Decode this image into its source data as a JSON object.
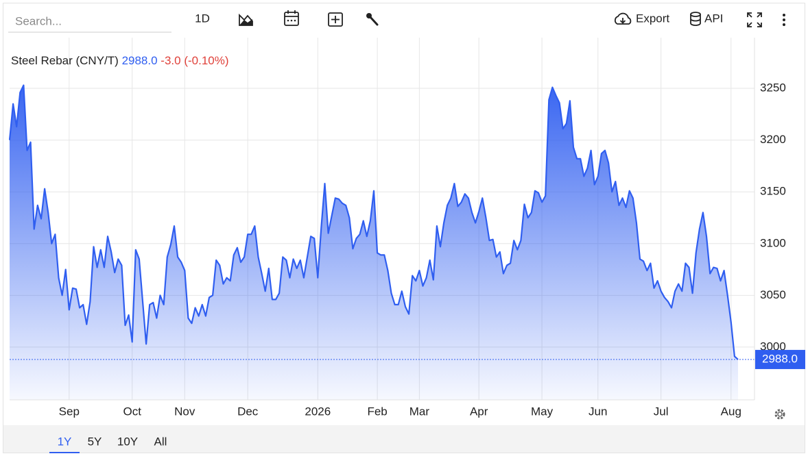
{
  "toolbar": {
    "search_placeholder": "Search...",
    "interval": "1D",
    "export": "Export",
    "api": "API"
  },
  "range_selector": {
    "options": [
      "1Y",
      "5Y",
      "10Y",
      "All"
    ],
    "active": 0
  },
  "chart_data": {
    "type": "area",
    "title": "Steel Rebar (CNY/T)",
    "last_price": {
      "value": 2988,
      "label": "2988.0"
    },
    "change": {
      "value": -3,
      "label": "-3.0"
    },
    "change_pct": {
      "value": -0.1,
      "label": "(-0.10%)"
    },
    "color": "#2f5ef0",
    "ylim": [
      2949,
      3299
    ],
    "yticks": [
      3000,
      3050,
      3100,
      3150,
      3200,
      3250
    ],
    "grid": true,
    "categories": [
      null,
      null,
      null,
      null,
      null,
      null,
      null,
      null,
      null,
      null,
      null,
      null,
      null,
      null,
      null,
      null,
      null,
      "Sep",
      null,
      null,
      null,
      null,
      null,
      null,
      null,
      null,
      null,
      null,
      null,
      null,
      null,
      null,
      null,
      null,
      null,
      "Oct",
      null,
      null,
      null,
      null,
      null,
      null,
      null,
      null,
      null,
      null,
      null,
      null,
      null,
      null,
      "Nov",
      null,
      null,
      null,
      null,
      null,
      null,
      null,
      null,
      null,
      null,
      null,
      null,
      null,
      null,
      null,
      null,
      null,
      "Dec",
      null,
      null,
      null,
      null,
      null,
      null,
      null,
      null,
      null,
      null,
      null,
      null,
      null,
      null,
      null,
      null,
      null,
      null,
      null,
      "2026",
      null,
      null,
      null,
      null,
      null,
      null,
      null,
      null,
      null,
      null,
      null,
      null,
      null,
      null,
      null,
      null,
      "Feb",
      null,
      null,
      null,
      null,
      null,
      null,
      null,
      null,
      null,
      null,
      null,
      "Mar",
      null,
      null,
      null,
      null,
      null,
      null,
      null,
      null,
      null,
      null,
      null,
      null,
      null,
      null,
      null,
      null,
      "Apr",
      null,
      null,
      null,
      null,
      null,
      null,
      null,
      null,
      null,
      null,
      null,
      null,
      null,
      null,
      null,
      null,
      null,
      "May",
      null,
      null,
      null,
      null,
      null,
      null,
      null,
      null,
      null,
      null,
      null,
      null,
      null,
      null,
      null,
      "Jun",
      null,
      null,
      null,
      null,
      null,
      null,
      null,
      null,
      null,
      null,
      null,
      null,
      null,
      null,
      null,
      null,
      null,
      "Jul",
      null,
      null,
      null,
      null,
      null,
      null,
      null,
      null,
      null,
      null,
      null,
      null,
      null,
      null,
      null,
      null,
      null,
      null,
      null,
      "Aug",
      null,
      null
    ],
    "values": [
      3200,
      3235,
      3213,
      3246,
      3253,
      3190,
      3198,
      3114,
      3137,
      3124,
      3153,
      3130,
      3100,
      3109,
      3067,
      3050,
      3075,
      3036,
      3057,
      3056,
      3038,
      3041,
      3022,
      3044,
      3097,
      3077,
      3094,
      3077,
      3107,
      3092,
      3072,
      3085,
      3079,
      3021,
      3031,
      3005,
      3094,
      3085,
      3044,
      3003,
      3041,
      3043,
      3028,
      3050,
      3041,
      3087,
      3099,
      3117,
      3087,
      3082,
      3074,
      3028,
      3023,
      3038,
      3030,
      3041,
      3030,
      3048,
      3050,
      3084,
      3079,
      3061,
      3067,
      3064,
      3089,
      3096,
      3082,
      3087,
      3109,
      3109,
      3117,
      3087,
      3071,
      3054,
      3076,
      3046,
      3046,
      3052,
      3087,
      3084,
      3067,
      3085,
      3076,
      3084,
      3067,
      3087,
      3107,
      3105,
      3067,
      3116,
      3158,
      3110,
      3127,
      3144,
      3143,
      3139,
      3137,
      3125,
      3095,
      3105,
      3109,
      3122,
      3107,
      3122,
      3151,
      3091,
      3089,
      3089,
      3074,
      3052,
      3041,
      3041,
      3054,
      3039,
      3032,
      3069,
      3064,
      3074,
      3059,
      3067,
      3084,
      3065,
      3117,
      3097,
      3120,
      3137,
      3144,
      3158,
      3136,
      3140,
      3148,
      3144,
      3130,
      3120,
      3131,
      3144,
      3125,
      3103,
      3104,
      3087,
      3092,
      3071,
      3079,
      3081,
      3103,
      3094,
      3103,
      3138,
      3125,
      3130,
      3151,
      3149,
      3140,
      3146,
      3239,
      3251,
      3243,
      3236,
      3211,
      3216,
      3238,
      3193,
      3182,
      3182,
      3165,
      3173,
      3190,
      3157,
      3165,
      3187,
      3190,
      3178,
      3150,
      3160,
      3137,
      3144,
      3135,
      3151,
      3144,
      3120,
      3085,
      3083,
      3074,
      3081,
      3057,
      3064,
      3054,
      3048,
      3044,
      3038,
      3054,
      3061,
      3054,
      3081,
      3077,
      3052,
      3091,
      3114,
      3130,
      3107,
      3071,
      3077,
      3076,
      3064,
      3074,
      3050,
      3024,
      2991,
      2988
    ]
  }
}
